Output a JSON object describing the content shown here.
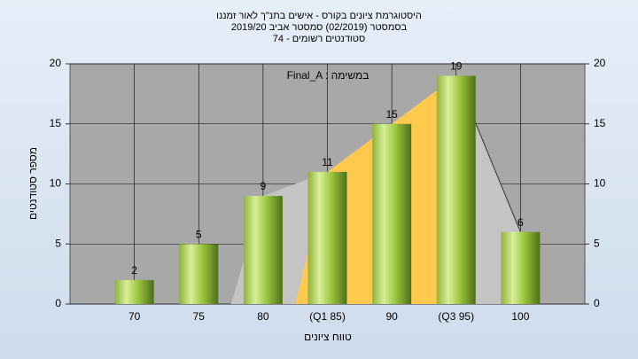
{
  "chart_data": {
    "type": "bar",
    "title": [
      "היסטוגרמת ציונים בקורס - אישים בתנ\"ך לאור זמננו",
      "בסמסטר  (02/2019)  סמסטר אביב 2019/20",
      "סטודנטים רשומים - 74"
    ],
    "annotation": "Final_A : במשימה",
    "x_label": "טווח ציונים",
    "y_label": "מספר סטודנטים",
    "categories": [
      "70",
      "75",
      "80",
      "(Q1 85)",
      "90",
      "(Q3 95)",
      "100"
    ],
    "series": [
      {
        "color": "#9bc53d",
        "values": [
          2,
          5,
          9,
          11,
          15,
          19,
          6
        ]
      }
    ],
    "ylim": [
      0,
      20
    ],
    "yticks": [
      0,
      5,
      10,
      15,
      20
    ],
    "grid": true
  }
}
